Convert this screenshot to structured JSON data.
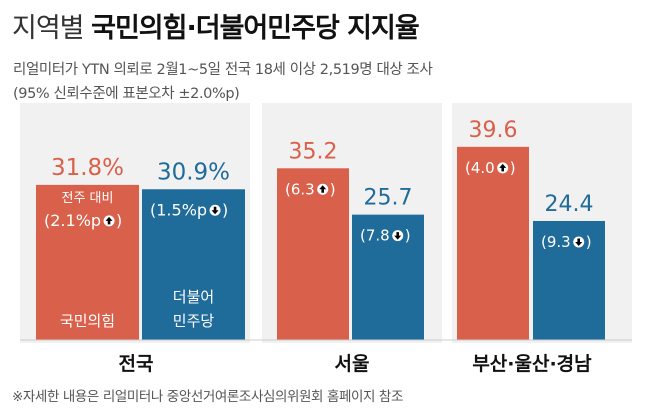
{
  "header": {
    "title_prefix": "지역별",
    "title_main": "국민의힘·더불어민주당 지지율",
    "subtitle_line1": "리얼미터가 YTN 의뢰로 2월1~5일 전국 18세 이상 2,519명 대상 조사",
    "subtitle_line2": "(95% 신뢰수준에 표본오차 ±2.0%p)"
  },
  "footnote": "※자세한 내용은 리얼미터나 중앙선거여론조사심의위원회 홈페이지 참조",
  "colors": {
    "ppp": "#d9604a",
    "dp": "#1f6b9a",
    "panel": "#f1f1f1"
  },
  "chart_data": {
    "type": "bar",
    "categories": [
      "전국",
      "서울",
      "부산·울산·경남"
    ],
    "series": [
      {
        "name": "국민의힘",
        "values": [
          31.8,
          35.2,
          39.6
        ],
        "change_labels": [
          "(2.1%p",
          "(6.3",
          "(4.0"
        ],
        "change_direction": [
          "up",
          "up",
          "up"
        ]
      },
      {
        "name": "더불어민주당",
        "values": [
          30.9,
          25.7,
          24.4
        ],
        "change_labels": [
          "(1.5%p",
          "(7.8",
          "(9.3"
        ],
        "change_direction": [
          "down",
          "down",
          "down"
        ]
      }
    ],
    "value_labels": [
      [
        "31.8%",
        "35.2",
        "39.6"
      ],
      [
        "30.9%",
        "25.7",
        "24.4"
      ]
    ],
    "change_caption": "전주 대비",
    "bar_inner_labels": [
      [
        "국민",
        "의힘"
      ],
      [
        "더불어",
        "민주당"
      ]
    ],
    "ylim": [
      0,
      41
    ]
  }
}
